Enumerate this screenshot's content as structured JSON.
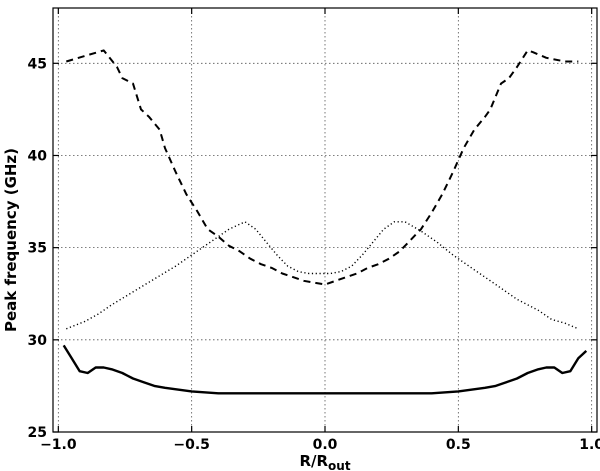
{
  "chart_data": {
    "type": "line",
    "title": "",
    "xlabel": "R/R",
    "xlabel_sub": "out",
    "ylabel": "Peak frequency (GHz)",
    "xlim": [
      -1.02,
      1.02
    ],
    "ylim": [
      25,
      48
    ],
    "grid": true,
    "xticks": [
      -1.0,
      -0.5,
      0.0,
      0.5,
      1.0
    ],
    "xtick_labels": [
      "−1.0",
      "−0.5",
      "0.0",
      "0.5",
      "1.0"
    ],
    "yticks": [
      25,
      30,
      35,
      40,
      45
    ],
    "ytick_labels": [
      "25",
      "30",
      "35",
      "40",
      "45"
    ],
    "series": [
      {
        "style": "dashed",
        "color": "#000000",
        "x": [
          -0.97,
          -0.9,
          -0.83,
          -0.78,
          -0.76,
          -0.72,
          -0.69,
          -0.66,
          -0.62,
          -0.6,
          -0.56,
          -0.52,
          -0.48,
          -0.44,
          -0.4,
          -0.36,
          -0.32,
          -0.28,
          -0.24,
          -0.2,
          -0.16,
          -0.12,
          -0.08,
          -0.04,
          0.0,
          0.04,
          0.08,
          0.12,
          0.16,
          0.2,
          0.24,
          0.28,
          0.32,
          0.36,
          0.4,
          0.44,
          0.48,
          0.52,
          0.56,
          0.6,
          0.62,
          0.66,
          0.69,
          0.72,
          0.76,
          0.78,
          0.83,
          0.9,
          0.95
        ],
        "y": [
          45.1,
          45.4,
          45.7,
          44.8,
          44.2,
          43.9,
          42.5,
          42.1,
          41.4,
          40.4,
          39.1,
          37.9,
          37.0,
          36.0,
          35.6,
          35.1,
          34.8,
          34.4,
          34.1,
          33.9,
          33.6,
          33.4,
          33.2,
          33.1,
          33.0,
          33.2,
          33.4,
          33.6,
          33.9,
          34.1,
          34.4,
          34.8,
          35.4,
          36.0,
          36.9,
          37.9,
          39.1,
          40.4,
          41.4,
          42.1,
          42.5,
          43.9,
          44.2,
          44.8,
          45.7,
          45.6,
          45.3,
          45.1,
          45.1
        ]
      },
      {
        "style": "dotted",
        "color": "#000000",
        "x": [
          -0.97,
          -0.9,
          -0.85,
          -0.8,
          -0.72,
          -0.64,
          -0.56,
          -0.48,
          -0.42,
          -0.36,
          -0.3,
          -0.26,
          -0.22,
          -0.18,
          -0.14,
          -0.1,
          -0.06,
          -0.02,
          0.0,
          0.02,
          0.06,
          0.1,
          0.14,
          0.18,
          0.22,
          0.26,
          0.3,
          0.36,
          0.42,
          0.48,
          0.56,
          0.64,
          0.72,
          0.8,
          0.85,
          0.9,
          0.95
        ],
        "y": [
          30.6,
          31.0,
          31.4,
          31.9,
          32.6,
          33.3,
          34.0,
          34.8,
          35.4,
          36.0,
          36.4,
          36.0,
          35.3,
          34.6,
          34.0,
          33.7,
          33.6,
          33.6,
          33.6,
          33.6,
          33.7,
          34.0,
          34.6,
          35.3,
          36.0,
          36.4,
          36.4,
          35.9,
          35.3,
          34.6,
          33.8,
          33.0,
          32.2,
          31.6,
          31.1,
          30.9,
          30.6
        ]
      },
      {
        "style": "solid",
        "color": "#000000",
        "x": [
          -0.98,
          -0.95,
          -0.92,
          -0.89,
          -0.86,
          -0.83,
          -0.8,
          -0.76,
          -0.72,
          -0.68,
          -0.64,
          -0.6,
          -0.5,
          -0.4,
          -0.3,
          -0.2,
          -0.1,
          0.0,
          0.1,
          0.2,
          0.3,
          0.4,
          0.5,
          0.6,
          0.64,
          0.68,
          0.72,
          0.76,
          0.8,
          0.83,
          0.86,
          0.89,
          0.92,
          0.95,
          0.98
        ],
        "y": [
          29.7,
          29.0,
          28.3,
          28.2,
          28.5,
          28.5,
          28.4,
          28.2,
          27.9,
          27.7,
          27.5,
          27.4,
          27.2,
          27.1,
          27.1,
          27.1,
          27.1,
          27.1,
          27.1,
          27.1,
          27.1,
          27.1,
          27.2,
          27.4,
          27.5,
          27.7,
          27.9,
          28.2,
          28.4,
          28.5,
          28.5,
          28.2,
          28.3,
          29.0,
          29.4
        ]
      }
    ]
  }
}
